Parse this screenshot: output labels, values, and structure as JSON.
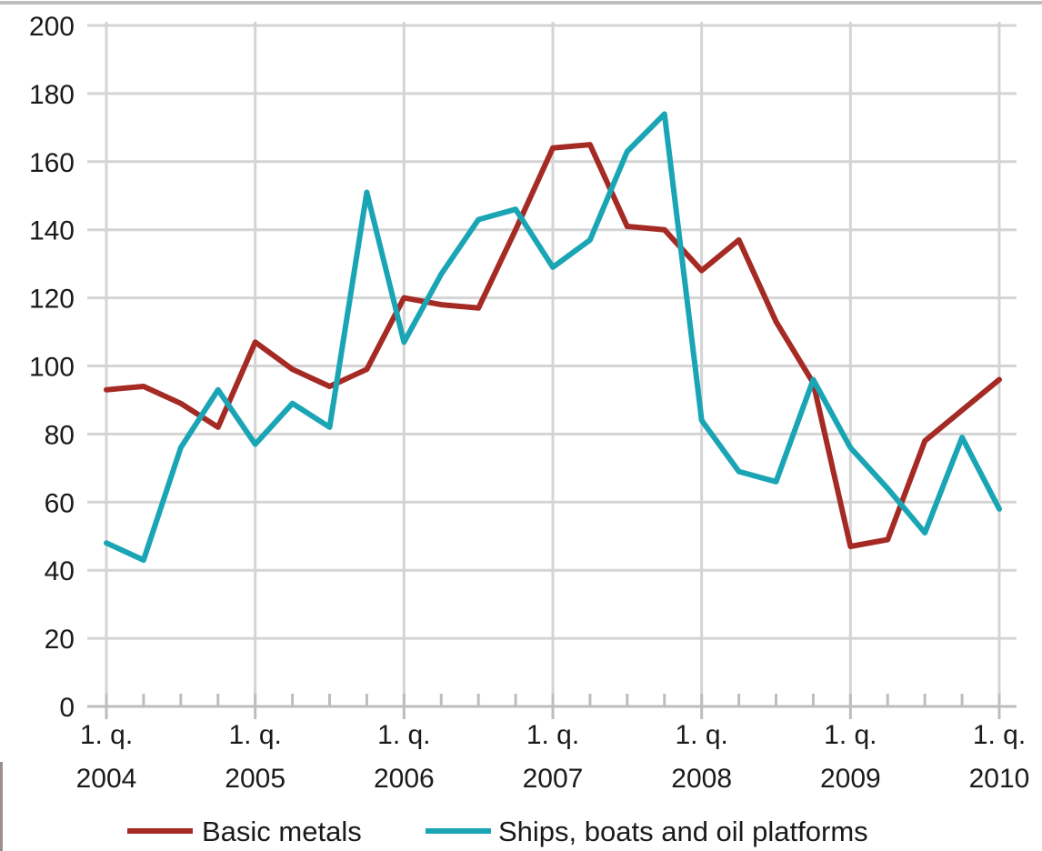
{
  "chart_data": {
    "type": "line",
    "title": "",
    "xlabel": "",
    "ylabel": "",
    "ylim": [
      0,
      200
    ],
    "yticks": [
      0,
      20,
      40,
      60,
      80,
      100,
      120,
      140,
      160,
      180,
      200
    ],
    "grid": "horizontal",
    "legend_position": "bottom",
    "x_major_ticks": [
      {
        "index": 0,
        "line1": "1. q.",
        "line2": "2004"
      },
      {
        "index": 4,
        "line1": "1. q.",
        "line2": "2005"
      },
      {
        "index": 8,
        "line1": "1. q.",
        "line2": "2006"
      },
      {
        "index": 12,
        "line1": "1. q.",
        "line2": "2007"
      },
      {
        "index": 16,
        "line1": "1. q.",
        "line2": "2008"
      },
      {
        "index": 20,
        "line1": "1. q.",
        "line2": "2009"
      },
      {
        "index": 24,
        "line1": "1. q.",
        "line2": "2010"
      }
    ],
    "num_periods": 25,
    "series": [
      {
        "name": "Basic metals",
        "color": "#a52a24",
        "values": [
          93,
          94,
          89,
          82,
          107,
          99,
          94,
          99,
          120,
          118,
          117,
          140,
          164,
          165,
          141,
          140,
          128,
          137,
          113,
          95,
          47,
          49,
          78,
          87,
          96
        ]
      },
      {
        "name": "Ships, boats and oil platforms",
        "color": "#1aa5b5",
        "values": [
          48,
          43,
          76,
          93,
          77,
          89,
          82,
          151,
          107,
          127,
          143,
          146,
          129,
          137,
          163,
          174,
          84,
          69,
          66,
          96,
          76,
          64,
          51,
          79,
          58
        ]
      }
    ]
  }
}
